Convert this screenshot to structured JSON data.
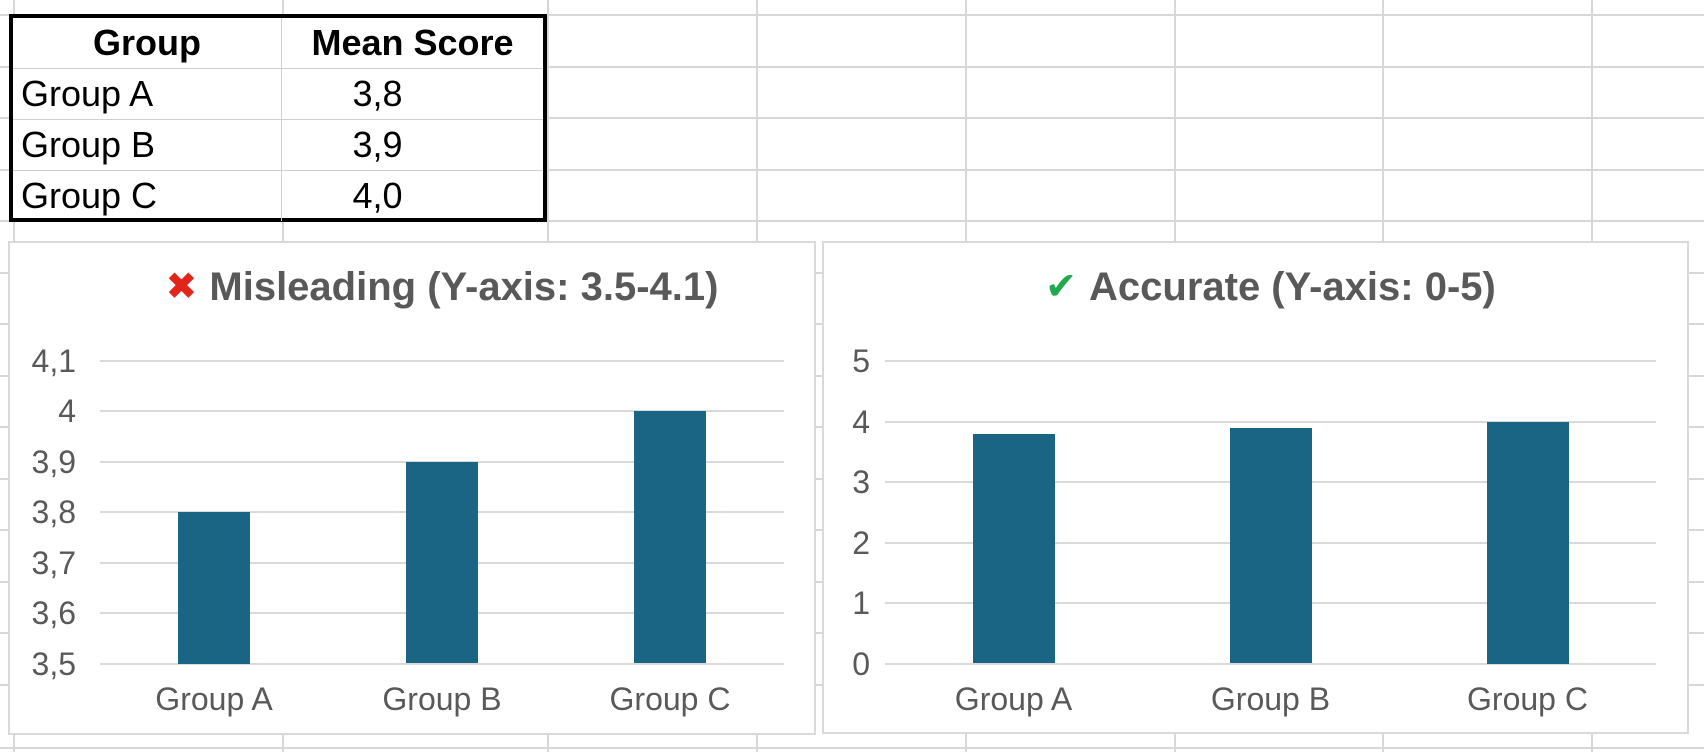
{
  "sheet": {
    "gridline_color": "#d7d7d7"
  },
  "table": {
    "headers": [
      "Group",
      "Mean Score"
    ],
    "rows": [
      [
        "Group A",
        "3,8"
      ],
      [
        "Group B",
        "3,9"
      ],
      [
        "Group C",
        "4,0"
      ]
    ]
  },
  "icons": {
    "cross_glyph": "✖",
    "cross_color": "#e1251b",
    "check_glyph": "✔",
    "check_color": "#21a94e"
  },
  "colors": {
    "bar_fill": "#1a6484",
    "chart_text": "#595959",
    "chart_gridline": "#d9d9d9",
    "table_border": "#000000"
  },
  "chart_data": [
    {
      "type": "bar",
      "title": "Misleading (Y-axis: 3.5-4.1)",
      "title_icon": "✖",
      "categories": [
        "Group A",
        "Group B",
        "Group C"
      ],
      "values": [
        3.8,
        3.9,
        4.0
      ],
      "xlabel": "",
      "ylabel": "",
      "ylim": [
        3.5,
        4.1
      ],
      "yticks": [
        4.1,
        4.0,
        3.9,
        3.8,
        3.7,
        3.6,
        3.5
      ],
      "ytick_labels": [
        "4,1",
        "4",
        "3,9",
        "3,8",
        "3,7",
        "3,6",
        "3,5"
      ],
      "bar_color": "#1a6484",
      "grid": true,
      "legend": false
    },
    {
      "type": "bar",
      "title": "Accurate (Y-axis: 0-5)",
      "title_icon": "✔",
      "categories": [
        "Group A",
        "Group B",
        "Group C"
      ],
      "values": [
        3.8,
        3.9,
        4.0
      ],
      "xlabel": "",
      "ylabel": "",
      "ylim": [
        0,
        5
      ],
      "yticks": [
        5,
        4,
        3,
        2,
        1,
        0
      ],
      "ytick_labels": [
        "5",
        "4",
        "3",
        "2",
        "1",
        "0"
      ],
      "bar_color": "#1a6484",
      "grid": true,
      "legend": false
    }
  ]
}
